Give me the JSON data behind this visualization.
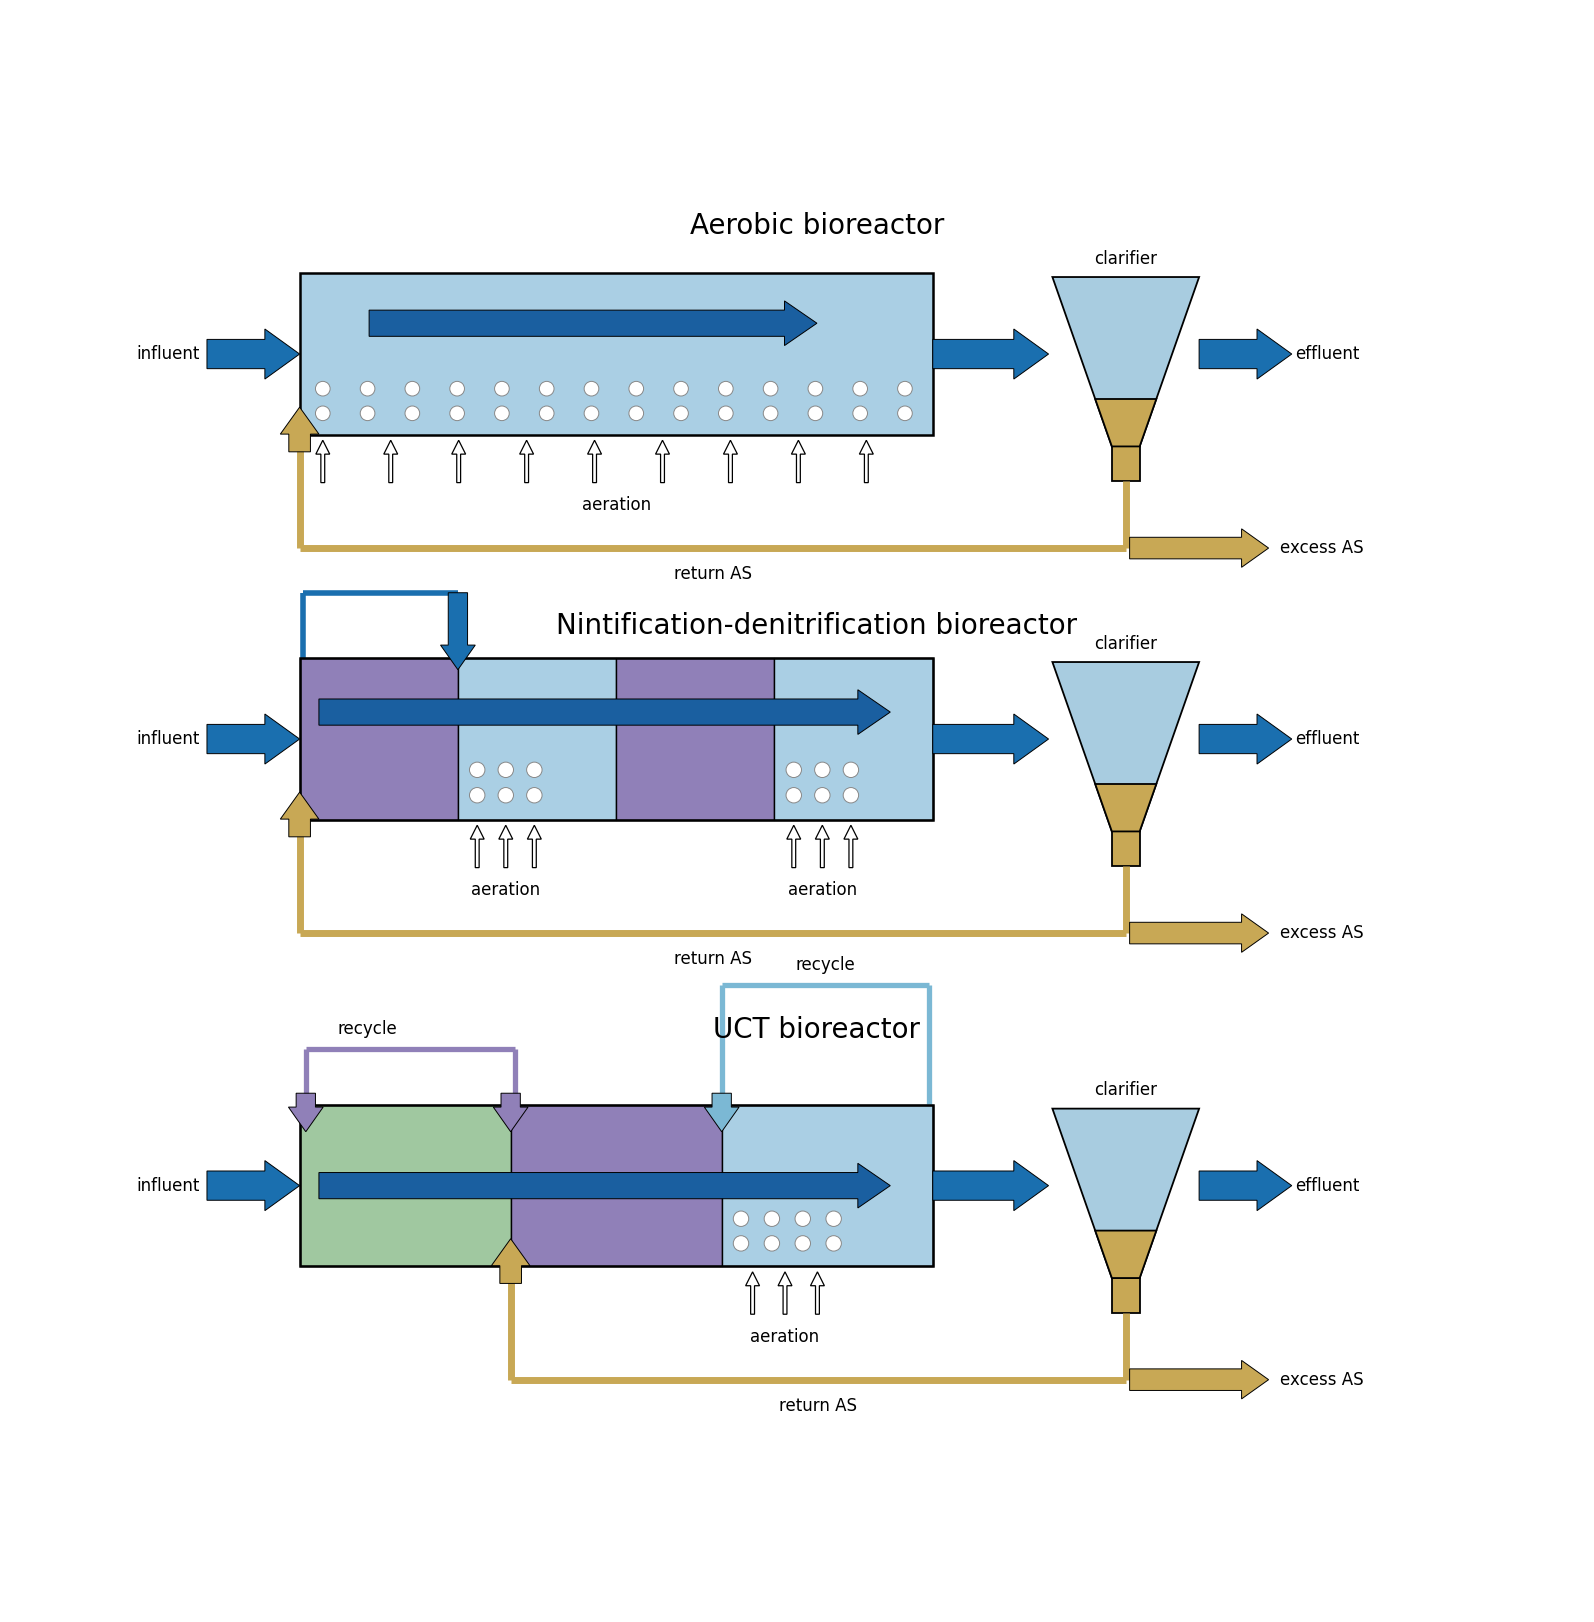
{
  "title1": "Aerobic bioreactor",
  "title2": "Nintification-denitrification bioreactor",
  "title3": "UCT bioreactor",
  "colors": {
    "light_blue": "#AACFE4",
    "mid_blue": "#7BB8D4",
    "blue_arrow": "#1A6FAF",
    "dark_blue": "#1A5FA0",
    "purple": "#9080B8",
    "green": "#A0C8A0",
    "tan": "#C8A855",
    "tan_dark": "#B89040",
    "white": "#FFFFFF",
    "black": "#000000",
    "clarifier_top": "#A8CCE0",
    "clarifier_bot": "#C8A855"
  },
  "fig_width": 15.94,
  "fig_height": 16.22,
  "dpi": 100
}
